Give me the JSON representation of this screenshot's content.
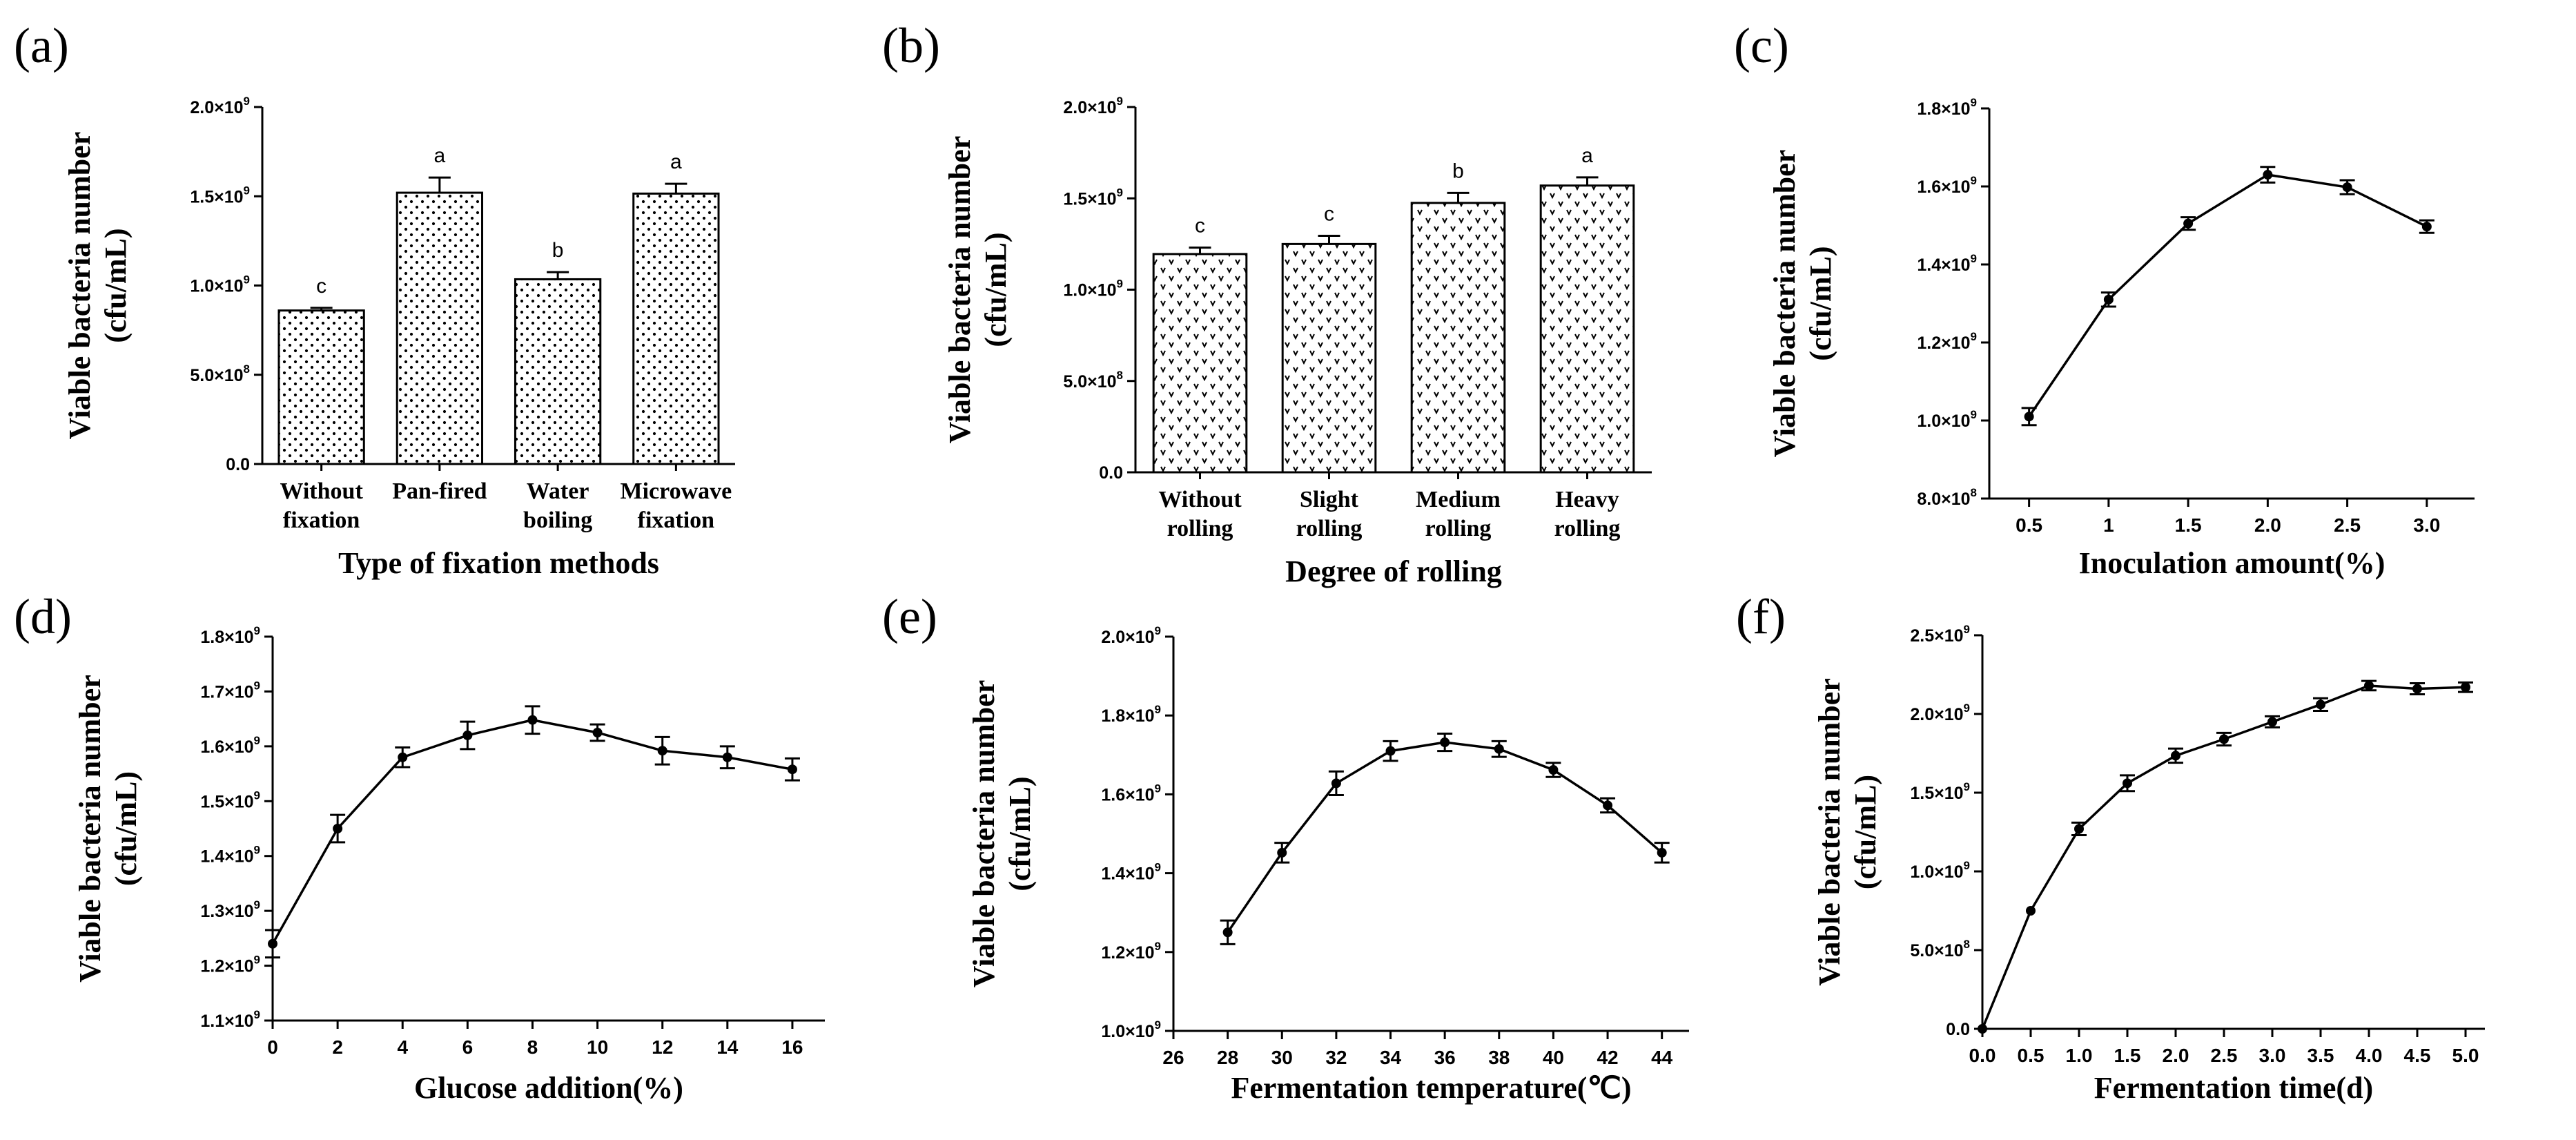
{
  "colors": {
    "ink": "#000000",
    "bar_fill": "#ffffff",
    "background": "#ffffff"
  },
  "chart_data": [
    {
      "panel": "(a)",
      "type": "bar",
      "pattern": "dots",
      "categories": [
        [
          "Without",
          "fixation"
        ],
        [
          "Pan-fired"
        ],
        [
          "Water",
          "boiling"
        ],
        [
          "Microwave",
          "fixation"
        ]
      ],
      "values": [
        860000000,
        1520000000,
        1035000000,
        1515000000
      ],
      "errors": [
        15000000,
        85000000,
        40000000,
        55000000
      ],
      "significance": [
        "c",
        "a",
        "b",
        "a"
      ],
      "xlabel": "Type of fixation methods",
      "ylabel": [
        "Viable bacteria number",
        "(cfu/mL)"
      ],
      "ylim": [
        0,
        2000000000
      ],
      "yticks": [
        0,
        500000000,
        1000000000,
        1500000000,
        2000000000
      ],
      "ytick_labels": [
        "0.0",
        "5.0×10",
        "1.0×10",
        "1.5×10",
        "2.0×10"
      ],
      "ytick_exps": [
        "",
        "8",
        "9",
        "9",
        "9"
      ]
    },
    {
      "panel": "(b)",
      "type": "bar",
      "pattern": "vees",
      "categories": [
        [
          "Without",
          "rolling"
        ],
        [
          "Slight",
          "rolling"
        ],
        [
          "Medium",
          "rolling"
        ],
        [
          "Heavy",
          "rolling"
        ]
      ],
      "values": [
        1195000000,
        1250000000,
        1475000000,
        1570000000
      ],
      "errors": [
        35000000,
        45000000,
        55000000,
        45000000
      ],
      "significance": [
        "c",
        "c",
        "b",
        "a"
      ],
      "xlabel": "Degree of rolling",
      "ylabel": [
        "Viable bacteria number",
        "(cfu/mL)"
      ],
      "ylim": [
        0,
        2000000000
      ],
      "yticks": [
        0,
        500000000,
        1000000000,
        1500000000,
        2000000000
      ],
      "ytick_labels": [
        "0.0",
        "5.0×10",
        "1.0×10",
        "1.5×10",
        "2.0×10"
      ],
      "ytick_exps": [
        "",
        "8",
        "9",
        "9",
        "9"
      ]
    },
    {
      "panel": "(c)",
      "type": "line",
      "x": [
        0.5,
        1,
        1.5,
        2,
        2.5,
        3
      ],
      "y": [
        1010000000,
        1310000000,
        1505000000,
        1630000000,
        1598000000,
        1497000000
      ],
      "errors": [
        22000000,
        18000000,
        16000000,
        20000000,
        18000000,
        16000000
      ],
      "xlabel": "Inoculation amount(%)",
      "ylabel": [
        "Viable bacteria number",
        "(cfu/mL)"
      ],
      "xlim": [
        0.25,
        3.3
      ],
      "xticks": [
        0.5,
        1,
        1.5,
        2,
        2.5,
        3
      ],
      "xtick_labels": [
        "0.5",
        "1",
        "1.5",
        "2.0",
        "2.5",
        "3.0"
      ],
      "ylim": [
        800000000,
        1800000000
      ],
      "yticks": [
        800000000,
        1000000000,
        1200000000,
        1400000000,
        1600000000,
        1800000000
      ],
      "ytick_labels": [
        "8.0×10",
        "1.0×10",
        "1.2×10",
        "1.4×10",
        "1.6×10",
        "1.8×10"
      ],
      "ytick_exps": [
        "8",
        "9",
        "9",
        "9",
        "9",
        "9"
      ]
    },
    {
      "panel": "(d)",
      "type": "line",
      "x": [
        0,
        2,
        4,
        6,
        8,
        10,
        12,
        14,
        16
      ],
      "y": [
        1240000000,
        1450000000,
        1580000000,
        1620000000,
        1648000000,
        1625000000,
        1592000000,
        1580000000,
        1558000000
      ],
      "errors": [
        25000000,
        25000000,
        18000000,
        25000000,
        25000000,
        15000000,
        25000000,
        20000000,
        20000000
      ],
      "xlabel": "Glucose addition(%)",
      "ylabel": [
        "Viable bacteria number",
        "(cfu/mL)"
      ],
      "xlim": [
        0,
        17
      ],
      "xticks": [
        0,
        2,
        4,
        6,
        8,
        10,
        12,
        14,
        16
      ],
      "xtick_labels": [
        "0",
        "2",
        "4",
        "6",
        "8",
        "10",
        "12",
        "14",
        "16"
      ],
      "ylim": [
        1100000000,
        1800000000
      ],
      "yticks": [
        1100000000,
        1200000000,
        1300000000,
        1400000000,
        1500000000,
        1600000000,
        1700000000,
        1800000000
      ],
      "ytick_labels": [
        "1.1×10",
        "1.2×10",
        "1.3×10",
        "1.4×10",
        "1.5×10",
        "1.6×10",
        "1.7×10",
        "1.8×10"
      ],
      "ytick_exps": [
        "9",
        "9",
        "9",
        "9",
        "9",
        "9",
        "9",
        "9"
      ]
    },
    {
      "panel": "(e)",
      "type": "line",
      "x": [
        28,
        30,
        32,
        34,
        36,
        38,
        40,
        42,
        44
      ],
      "y": [
        1250000000,
        1452000000,
        1628000000,
        1710000000,
        1732000000,
        1715000000,
        1662000000,
        1572000000,
        1452000000
      ],
      "errors": [
        30000000,
        25000000,
        30000000,
        25000000,
        22000000,
        20000000,
        18000000,
        18000000,
        25000000
      ],
      "xlabel": "Fermentation temperature(℃)",
      "ylabel": [
        "Viable bacteria number",
        "(cfu/mL)"
      ],
      "xlim": [
        26,
        45
      ],
      "xticks": [
        26,
        28,
        30,
        32,
        34,
        36,
        38,
        40,
        42,
        44
      ],
      "xtick_labels": [
        "26",
        "28",
        "30",
        "32",
        "34",
        "36",
        "38",
        "40",
        "42",
        "44"
      ],
      "ylim": [
        1000000000,
        2000000000
      ],
      "yticks": [
        1000000000,
        1200000000,
        1400000000,
        1600000000,
        1800000000,
        2000000000
      ],
      "ytick_labels": [
        "1.0×10",
        "1.2×10",
        "1.4×10",
        "1.6×10",
        "1.8×10",
        "2.0×10"
      ],
      "ytick_exps": [
        "9",
        "9",
        "9",
        "9",
        "9",
        "9"
      ]
    },
    {
      "panel": "(f)",
      "type": "line",
      "x": [
        0,
        0.5,
        1,
        1.5,
        2,
        2.5,
        3,
        3.5,
        4,
        4.5,
        5
      ],
      "y": [
        0,
        750000000,
        1270000000,
        1560000000,
        1735000000,
        1840000000,
        1950000000,
        2060000000,
        2180000000,
        2160000000,
        2170000000
      ],
      "errors": [
        0,
        0,
        40000000,
        50000000,
        45000000,
        40000000,
        35000000,
        40000000,
        30000000,
        35000000,
        30000000
      ],
      "xlabel": "Fermentation time(d)",
      "ylabel": [
        "Viable bacteria number",
        "(cfu/mL)"
      ],
      "xlim": [
        0,
        5.2
      ],
      "xticks": [
        0,
        0.5,
        1,
        1.5,
        2,
        2.5,
        3,
        3.5,
        4,
        4.5,
        5
      ],
      "xtick_labels": [
        "0.0",
        "0.5",
        "1.0",
        "1.5",
        "2.0",
        "2.5",
        "3.0",
        "3.5",
        "4.0",
        "4.5",
        "5.0"
      ],
      "ylim": [
        0,
        2500000000
      ],
      "yticks": [
        0,
        500000000,
        1000000000,
        1500000000,
        2000000000,
        2500000000
      ],
      "ytick_labels": [
        "0.0",
        "5.0×10",
        "1.0×10",
        "1.5×10",
        "2.0×10",
        "2.5×10"
      ],
      "ytick_exps": [
        "",
        "8",
        "9",
        "9",
        "9",
        "9"
      ]
    }
  ]
}
